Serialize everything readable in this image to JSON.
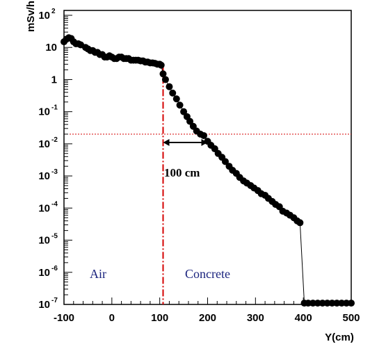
{
  "chart_data": {
    "type": "scatter",
    "ylabel": "mSv/h",
    "xlabel": "Y(cm)",
    "y_scale": "log",
    "xlim": [
      -100,
      500
    ],
    "ylim": [
      1e-07,
      100
    ],
    "x_ticks": [
      "-100",
      "0",
      "100",
      "200",
      "300",
      "400",
      "500"
    ],
    "y_ticks": [
      {
        "base": "10",
        "exp": "-7"
      },
      {
        "base": "10",
        "exp": "-6"
      },
      {
        "base": "10",
        "exp": "-5"
      },
      {
        "base": "10",
        "exp": "-4"
      },
      {
        "base": "10",
        "exp": "-3"
      },
      {
        "base": "10",
        "exp": "-2"
      },
      {
        "base": "10",
        "exp": "-1"
      },
      {
        "base": "1",
        "exp": ""
      },
      {
        "base": "10",
        "exp": ""
      },
      {
        "base": "10",
        "exp": "2"
      }
    ],
    "series": [
      {
        "marker_color": "#000000",
        "points": [
          [
            -100,
            15
          ],
          [
            -95,
            18
          ],
          [
            -90,
            20
          ],
          [
            -85,
            19
          ],
          [
            -80,
            15
          ],
          [
            -75,
            13
          ],
          [
            -70,
            13
          ],
          [
            -65,
            12
          ],
          [
            -55,
            10
          ],
          [
            -50,
            9
          ],
          [
            -45,
            8
          ],
          [
            -40,
            8
          ],
          [
            -35,
            7
          ],
          [
            -30,
            7
          ],
          [
            -25,
            6
          ],
          [
            -20,
            6
          ],
          [
            -15,
            5
          ],
          [
            -10,
            5
          ],
          [
            -5,
            5.5
          ],
          [
            0,
            5
          ],
          [
            5,
            4.5
          ],
          [
            10,
            4.5
          ],
          [
            15,
            5
          ],
          [
            20,
            5
          ],
          [
            25,
            4.5
          ],
          [
            30,
            4.5
          ],
          [
            35,
            4.5
          ],
          [
            40,
            4
          ],
          [
            45,
            4
          ],
          [
            50,
            4
          ],
          [
            55,
            4
          ],
          [
            60,
            3.8
          ],
          [
            65,
            3.8
          ],
          [
            70,
            3.5
          ],
          [
            75,
            3.5
          ],
          [
            80,
            3.3
          ],
          [
            85,
            3.3
          ],
          [
            90,
            3.2
          ],
          [
            95,
            3.0
          ],
          [
            100,
            3.0
          ],
          [
            103,
            2.8
          ],
          [
            107,
            1.5
          ],
          [
            112,
            1.0
          ],
          [
            120,
            0.6
          ],
          [
            127,
            0.38
          ],
          [
            135,
            0.25
          ],
          [
            142,
            0.16
          ],
          [
            150,
            0.1
          ],
          [
            157,
            0.07
          ],
          [
            163,
            0.05
          ],
          [
            170,
            0.035
          ],
          [
            177,
            0.025
          ],
          [
            185,
            0.02
          ],
          [
            192,
            0.018
          ],
          [
            200,
            0.012
          ],
          [
            207,
            0.009
          ],
          [
            215,
            0.007
          ],
          [
            222,
            0.005
          ],
          [
            230,
            0.0038
          ],
          [
            237,
            0.0028
          ],
          [
            245,
            0.002
          ],
          [
            252,
            0.0015
          ],
          [
            260,
            0.0012
          ],
          [
            267,
            0.0009
          ],
          [
            275,
            0.0007
          ],
          [
            282,
            0.0006
          ],
          [
            290,
            0.0005
          ],
          [
            297,
            0.00042
          ],
          [
            305,
            0.00035
          ],
          [
            312,
            0.00028
          ],
          [
            320,
            0.00025
          ],
          [
            327,
            0.0002
          ],
          [
            335,
            0.00016
          ],
          [
            342,
            0.00013
          ],
          [
            350,
            0.00011
          ],
          [
            357,
            8e-05
          ],
          [
            365,
            7e-05
          ],
          [
            372,
            6e-05
          ],
          [
            380,
            5e-05
          ],
          [
            387,
            4e-05
          ],
          [
            393,
            3.5e-05
          ],
          [
            402,
            1.1e-07
          ],
          [
            410,
            1.1e-07
          ],
          [
            420,
            1.1e-07
          ],
          [
            430,
            1.1e-07
          ],
          [
            440,
            1.1e-07
          ],
          [
            450,
            1.1e-07
          ],
          [
            460,
            1.1e-07
          ],
          [
            470,
            1.1e-07
          ],
          [
            480,
            1.1e-07
          ],
          [
            490,
            1.1e-07
          ],
          [
            500,
            1.1e-07
          ]
        ]
      }
    ],
    "annotations": {
      "boundary_x": 107,
      "reference_y": 0.02,
      "arrow_from_x": 107,
      "arrow_to_x": 200,
      "arrow_label": "100 cm",
      "region_left": "Air",
      "region_right": "Concrete",
      "boundary_color": "#d50000",
      "reference_color": "#d50000",
      "region_color": "#1a237e"
    }
  }
}
